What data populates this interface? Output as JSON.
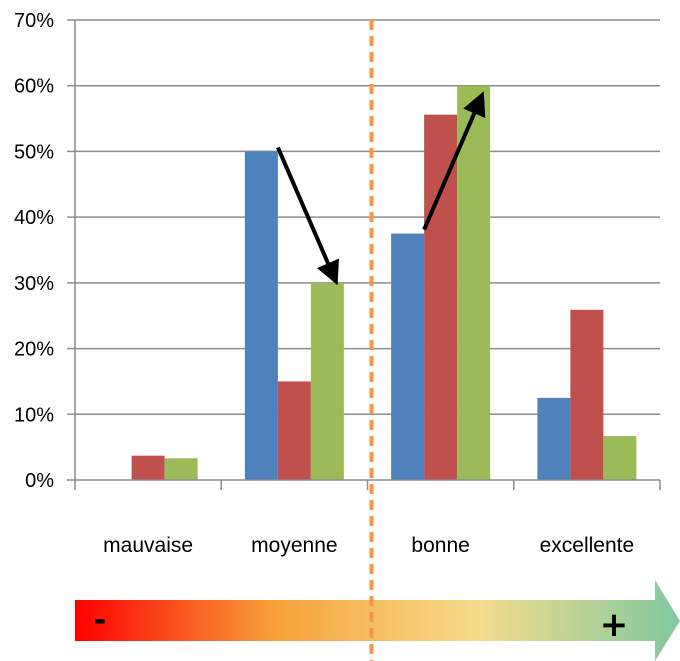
{
  "chart_data": {
    "type": "bar",
    "categories": [
      "mauvaise",
      "moyenne",
      "bonne",
      "excellente"
    ],
    "series": [
      {
        "color": "#4f81bd",
        "values": [
          0,
          50,
          37.5,
          12.5
        ]
      },
      {
        "color": "#c0504d",
        "values": [
          3.7,
          15,
          55.6,
          25.9
        ]
      },
      {
        "color": "#9bbb59",
        "values": [
          3.3,
          30,
          60,
          6.7
        ]
      }
    ],
    "ylim": [
      0,
      70
    ],
    "yticks": [
      0,
      10,
      20,
      30,
      40,
      50,
      60,
      70
    ],
    "ytick_format": "{v}%",
    "grid": true,
    "legend": "none",
    "annotations": {
      "arrows": [
        {
          "from": {
            "category": "moyenne",
            "series": 0,
            "value": 50
          },
          "to": {
            "category": "moyenne",
            "series": 2,
            "value": 30
          }
        },
        {
          "from": {
            "category": "bonne",
            "series": 0,
            "value": 37.5
          },
          "to": {
            "category": "bonne",
            "series": 2,
            "value": 60
          }
        }
      ],
      "divider": {
        "between": [
          "moyenne",
          "bonne"
        ],
        "style": "dashed",
        "color": "#f79646"
      },
      "scale_bar": {
        "minus_label": "-",
        "plus_label": "+",
        "gradient": [
          "#ff0000",
          "#f7a23a",
          "#f5dc8c",
          "#80c9a0"
        ]
      }
    }
  }
}
